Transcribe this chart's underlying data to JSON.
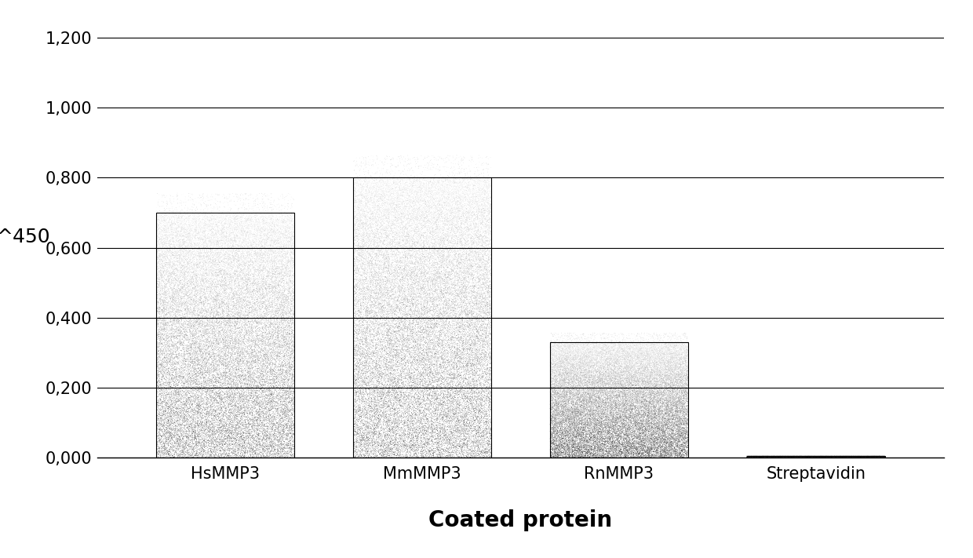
{
  "categories": [
    "HsMMP3",
    "MmMMP3",
    "RnMMP3",
    "Streptavidin"
  ],
  "values": [
    0.7,
    0.8,
    0.33,
    0.005
  ],
  "yticks": [
    0.0,
    0.2,
    0.4,
    0.6,
    0.8,
    1.0,
    1.2
  ],
  "ytick_labels": [
    "0,000",
    "0,200",
    "0,400",
    "0,600",
    "0,800",
    "1,000",
    "1,200"
  ],
  "ylim": [
    0,
    1.26
  ],
  "ylabel": "^450",
  "xlabel": "Coated protein",
  "bar_width": 0.7,
  "background_color": "#ffffff",
  "grid_color": "#000000",
  "axis_label_fontsize": 18,
  "tick_fontsize": 15
}
